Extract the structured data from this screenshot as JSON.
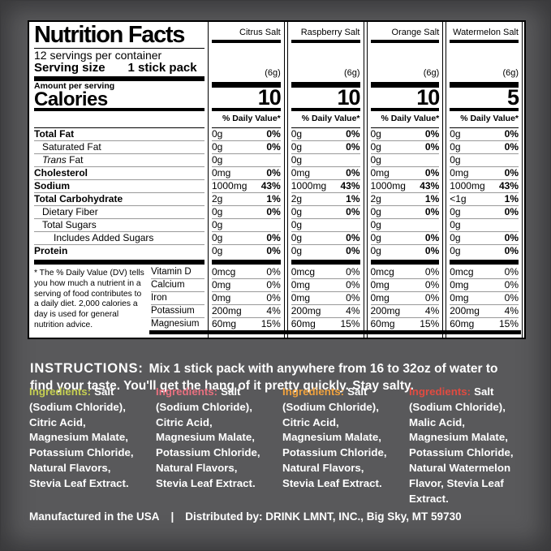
{
  "background_color": "#59595b",
  "label": {
    "title": "Nutrition Facts",
    "servings_per_container": "12 servings per container",
    "serving_size_label": "Serving size",
    "serving_size_value": "1 stick pack",
    "amount_per_serving": "Amount per serving",
    "calories_label": "Calories",
    "daily_value_header": "% Daily Value*",
    "flavors": [
      {
        "name": "Citrus Salt",
        "grams": "(6g)",
        "calories": "10",
        "accent_color": "#c5ce52"
      },
      {
        "name": "Raspberry Salt",
        "grams": "(6g)",
        "calories": "10",
        "accent_color": "#e7707f"
      },
      {
        "name": "Orange Salt",
        "grams": "(6g)",
        "calories": "10",
        "accent_color": "#f0a23e"
      },
      {
        "name": "Watermelon Salt",
        "grams": "(6g)",
        "calories": "5",
        "accent_color": "#e14b41"
      }
    ],
    "nutrients": [
      {
        "label": "Total Fat",
        "bold": true,
        "indent": 0,
        "amts": [
          "0g",
          "0g",
          "0g",
          "0g"
        ],
        "dvs": [
          "0%",
          "0%",
          "0%",
          "0%"
        ]
      },
      {
        "label": "Saturated Fat",
        "bold": false,
        "indent": 1,
        "amts": [
          "0g",
          "0g",
          "0g",
          "0g"
        ],
        "dvs": [
          "0%",
          "0%",
          "0%",
          "0%"
        ]
      },
      {
        "label": "Trans Fat",
        "bold": false,
        "indent": 1,
        "italic_first_word": true,
        "amts": [
          "0g",
          "0g",
          "0g",
          "0g"
        ],
        "dvs": [
          "",
          "",
          "",
          ""
        ]
      },
      {
        "label": "Cholesterol",
        "bold": true,
        "indent": 0,
        "amts": [
          "0mg",
          "0mg",
          "0mg",
          "0mg"
        ],
        "dvs": [
          "0%",
          "0%",
          "0%",
          "0%"
        ]
      },
      {
        "label": "Sodium",
        "bold": true,
        "indent": 0,
        "amts": [
          "1000mg",
          "1000mg",
          "1000mg",
          "1000mg"
        ],
        "dvs": [
          "43%",
          "43%",
          "43%",
          "43%"
        ]
      },
      {
        "label": "Total Carbohydrate",
        "bold": true,
        "indent": 0,
        "amts": [
          "2g",
          "2g",
          "2g",
          "<1g"
        ],
        "dvs": [
          "1%",
          "1%",
          "1%",
          "1%"
        ]
      },
      {
        "label": "Dietary Fiber",
        "bold": false,
        "indent": 1,
        "amts": [
          "0g",
          "0g",
          "0g",
          "0g"
        ],
        "dvs": [
          "0%",
          "0%",
          "0%",
          "0%"
        ]
      },
      {
        "label": "Total Sugars",
        "bold": false,
        "indent": 1,
        "amts": [
          "0g",
          "0g",
          "0g",
          "0g"
        ],
        "dvs": [
          "",
          "",
          "",
          ""
        ]
      },
      {
        "label": "Includes Added Sugars",
        "bold": false,
        "indent": 2,
        "amts": [
          "0g",
          "0g",
          "0g",
          "0g"
        ],
        "dvs": [
          "0%",
          "0%",
          "0%",
          "0%"
        ]
      },
      {
        "label": "Protein",
        "bold": true,
        "indent": 0,
        "amts": [
          "0g",
          "0g",
          "0g",
          "0g"
        ],
        "dvs": [
          "0%",
          "0%",
          "0%",
          "0%"
        ]
      }
    ],
    "vitamins": [
      {
        "label": "Vitamin D",
        "amts": [
          "0mcg",
          "0mcg",
          "0mcg",
          "0mcg"
        ],
        "dvs": [
          "0%",
          "0%",
          "0%",
          "0%"
        ]
      },
      {
        "label": "Calcium",
        "amts": [
          "0mg",
          "0mg",
          "0mg",
          "0mg"
        ],
        "dvs": [
          "0%",
          "0%",
          "0%",
          "0%"
        ]
      },
      {
        "label": "Iron",
        "amts": [
          "0mg",
          "0mg",
          "0mg",
          "0mg"
        ],
        "dvs": [
          "0%",
          "0%",
          "0%",
          "0%"
        ]
      },
      {
        "label": "Potassium",
        "amts": [
          "200mg",
          "200mg",
          "200mg",
          "200mg"
        ],
        "dvs": [
          "4%",
          "4%",
          "4%",
          "4%"
        ]
      },
      {
        "label": "Magnesium",
        "amts": [
          "60mg",
          "60mg",
          "60mg",
          "60mg"
        ],
        "dvs": [
          "15%",
          "15%",
          "15%",
          "15%"
        ]
      }
    ],
    "footnote": "* The % Daily Value (DV) tells you how much a nutrient in a serving of food contributes to a daily diet. 2,000 calories a day is used for general nutrition advice."
  },
  "instructions": {
    "heading": "INSTRUCTIONS:",
    "text": "Mix 1 stick pack with anywhere from 16 to 32oz of water to find your taste. You'll get the hang of it pretty quickly. Stay salty."
  },
  "ingredients": [
    {
      "heading": "Ingredients:",
      "color": "#c5ce52",
      "text": "Salt (Sodium Chloride), Citric Acid, Magnesium Malate, Potassium Chloride, Natural Flavors, Stevia Leaf Extract."
    },
    {
      "heading": "Ingredients:",
      "color": "#e7707f",
      "text": "Salt (Sodium Chloride), Citric Acid, Magnesium Malate, Potassium Chloride, Natural Flavors, Stevia Leaf Extract."
    },
    {
      "heading": "Ingredients:",
      "color": "#f0a23e",
      "text": "Salt (Sodium Chloride), Citric Acid, Magnesium Malate, Potassium Chloride, Natural Flavors, Stevia Leaf Extract."
    },
    {
      "heading": "Ingredients:",
      "color": "#e14b41",
      "text": "Salt (Sodium Chloride), Malic Acid, Magnesium Malate, Potassium Chloride, Natural Watermelon Flavor, Stevia Leaf Extract."
    }
  ],
  "footer": {
    "made_in": "Manufactured in the USA",
    "separator": "|",
    "distributed_by": "Distributed by: DRINK LMNT, INC., Big Sky, MT 59730"
  }
}
